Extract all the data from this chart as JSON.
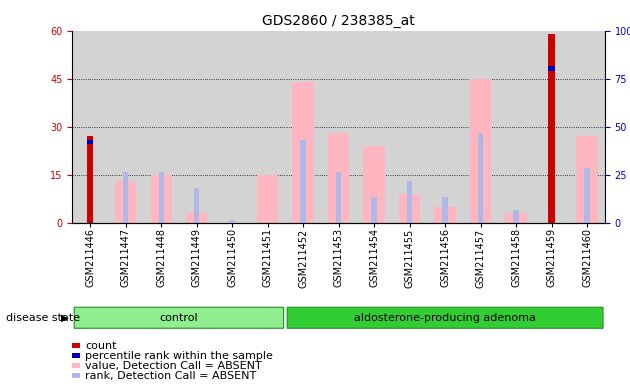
{
  "title": "GDS2860 / 238385_at",
  "samples": [
    "GSM211446",
    "GSM211447",
    "GSM211448",
    "GSM211449",
    "GSM211450",
    "GSM211451",
    "GSM211452",
    "GSM211453",
    "GSM211454",
    "GSM211455",
    "GSM211456",
    "GSM211457",
    "GSM211458",
    "GSM211459",
    "GSM211460"
  ],
  "value_absent_data": [
    0,
    13,
    15,
    3,
    0,
    15,
    44,
    28,
    24,
    9,
    5,
    45,
    3,
    0,
    27
  ],
  "rank_absent_data": [
    0,
    16,
    16,
    11,
    1,
    0,
    26,
    16,
    8,
    13,
    8,
    28,
    4,
    0,
    17
  ],
  "count_data": [
    27,
    0,
    0,
    0,
    0,
    0,
    0,
    0,
    0,
    0,
    0,
    0,
    0,
    59,
    0
  ],
  "percentile_data": [
    26,
    0,
    0,
    0,
    0,
    0,
    0,
    0,
    0,
    0,
    0,
    0,
    0,
    49,
    0
  ],
  "control_count": 6,
  "adenoma_count": 9,
  "ylim_left": [
    0,
    60
  ],
  "ylim_right": [
    0,
    100
  ],
  "yticks_left": [
    0,
    15,
    30,
    45,
    60
  ],
  "yticks_right": [
    0,
    25,
    50,
    75,
    100
  ],
  "ytick_right_labels": [
    "0",
    "25",
    "50",
    "75",
    "100%"
  ],
  "plot_bg": "#d3d3d3",
  "control_color": "#90ee90",
  "adenoma_color": "#32cd32",
  "color_count": "#cc0000",
  "color_percentile": "#0000bb",
  "color_value_absent": "#ffb6c1",
  "color_rank_absent": "#b0b8e8",
  "title_fontsize": 10,
  "tick_fontsize": 7,
  "legend_fontsize": 8,
  "disease_label_fontsize": 8,
  "group_label_fontsize": 8
}
